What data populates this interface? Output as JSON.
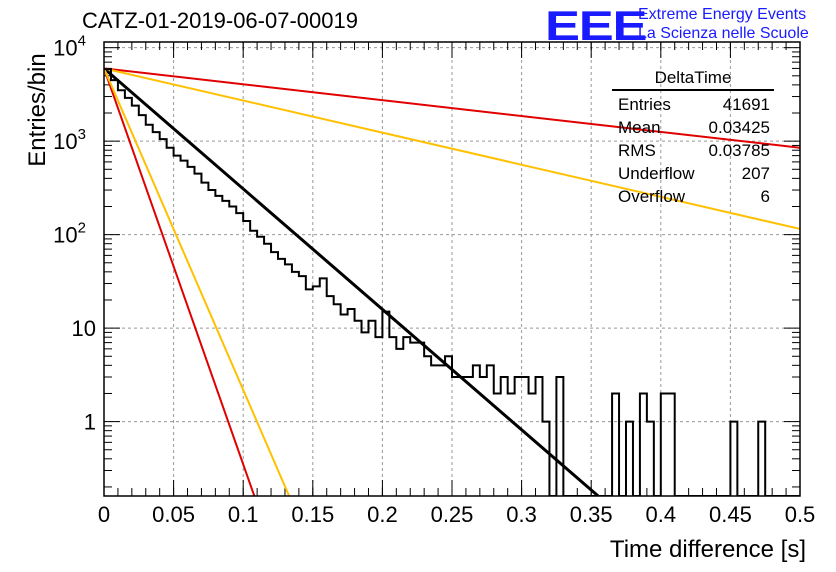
{
  "header": {
    "title": "CATZ-01-2019-06-07-00019",
    "logo_mark": "EEE",
    "logo_line1": "Extreme Energy Events",
    "logo_line2": "La Scienza nelle Scuole"
  },
  "stats_box": {
    "name": "DeltaTime",
    "rows": [
      {
        "label": "Entries",
        "value": "41691"
      },
      {
        "label": "Mean",
        "value": "0.03425"
      },
      {
        "label": "RMS",
        "value": "0.03785"
      },
      {
        "label": "Underflow",
        "value": "207"
      },
      {
        "label": "Overflow",
        "value": "6"
      }
    ]
  },
  "colors": {
    "histogram": "#000000",
    "fit": "#000000",
    "red": "#e00000",
    "orange": "#ffc000",
    "grid": "#999999",
    "logo": "#1a1aff"
  },
  "chart_data": {
    "type": "histogram",
    "title": "",
    "xlabel": "Time difference [s]",
    "ylabel": "Entries/bin",
    "xlim": [
      0,
      0.5
    ],
    "ylim": [
      0.16,
      11500
    ],
    "y_scale": "log",
    "grid": true,
    "x_ticks": [
      "0",
      "0.05",
      "0.1",
      "0.15",
      "0.2",
      "0.25",
      "0.3",
      "0.35",
      "0.4",
      "0.45",
      "0.5"
    ],
    "y_ticks": [
      {
        "value": 1,
        "label": "1"
      },
      {
        "value": 10,
        "label": "10"
      },
      {
        "value": 100,
        "label": "10^2"
      },
      {
        "value": 1000,
        "label": "10^3"
      },
      {
        "value": 10000,
        "label": "10^4"
      }
    ],
    "bin_width": 0.005,
    "histogram_counts": [
      5900,
      4500,
      3500,
      2900,
      2400,
      1900,
      1500,
      1250,
      1050,
      850,
      700,
      620,
      530,
      450,
      360,
      300,
      260,
      230,
      200,
      170,
      140,
      110,
      95,
      80,
      65,
      55,
      48,
      40,
      36,
      26,
      28,
      34,
      22,
      18,
      14,
      16,
      12,
      9,
      12,
      8,
      15,
      8,
      6,
      8,
      7,
      7,
      5,
      4,
      4,
      5,
      3,
      3,
      3,
      4,
      3,
      4,
      2,
      3,
      2,
      3,
      3,
      2,
      3,
      1,
      0,
      3,
      0,
      0,
      0,
      0,
      0,
      0,
      0,
      2,
      0,
      1,
      0,
      2,
      1,
      0,
      2,
      2,
      0,
      0,
      0,
      0,
      0,
      0,
      0,
      0,
      1,
      0,
      0,
      0,
      1,
      0,
      0,
      0,
      0,
      0
    ],
    "series": [
      {
        "name": "",
        "type": "line",
        "color": "#000000",
        "x": [
          0,
          0.355
        ],
        "y": [
          6000,
          0.16
        ]
      },
      {
        "name": "",
        "type": "line",
        "color": "#e00000",
        "x": [
          0,
          0.5
        ],
        "y": [
          6000,
          850
        ]
      },
      {
        "name": "",
        "type": "line",
        "color": "#ffc000",
        "x": [
          0,
          0.5
        ],
        "y": [
          6000,
          115
        ]
      },
      {
        "name": "",
        "type": "line",
        "color": "#e00000",
        "x": [
          0,
          0.108
        ],
        "y": [
          6000,
          0.16
        ]
      },
      {
        "name": "",
        "type": "line",
        "color": "#ffc000",
        "x": [
          0,
          0.133
        ],
        "y": [
          6000,
          0.16
        ]
      }
    ]
  }
}
